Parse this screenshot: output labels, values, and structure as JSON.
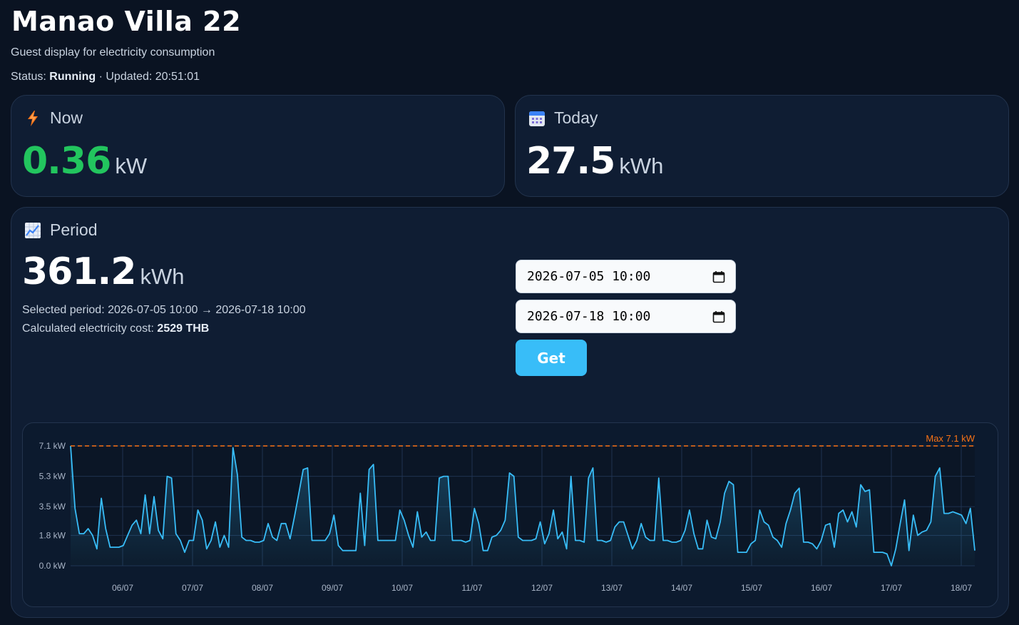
{
  "header": {
    "title": "Manao Villa 22",
    "subtitle": "Guest display for electricity consumption",
    "status_label": "Status:",
    "status_value": "Running",
    "updated": "· Updated: 20:51:01"
  },
  "now": {
    "label": "Now",
    "value": "0.36",
    "unit": "kW",
    "icon": "lightning-icon",
    "color": "#22c55e"
  },
  "today": {
    "label": "Today",
    "value": "27.5",
    "unit": "kWh",
    "icon": "calendar-icon"
  },
  "period": {
    "label": "Period",
    "icon": "chart-icon",
    "value": "361.2",
    "unit": "kWh",
    "selected_label": "Selected period:",
    "selected_range": "2026-07-05 10:00 → 2026-07-18 10:00",
    "cost_label": "Calculated electricity cost:",
    "cost_value": "2529 THB",
    "start_value": "2026-07-05 10:00",
    "end_value": "2026-07-18 10:00",
    "get_label": "Get"
  },
  "chart_data": {
    "type": "area",
    "y_ticks": [
      "7.1 kW",
      "5.3 kW",
      "3.5 kW",
      "1.8 kW",
      "0.0 kW"
    ],
    "y_tick_values": [
      7.1,
      5.3,
      3.5,
      1.8,
      0.0
    ],
    "ylim": [
      0,
      7.1
    ],
    "x_ticks": [
      "06/07",
      "07/07",
      "08/07",
      "09/07",
      "10/07",
      "11/07",
      "12/07",
      "13/07",
      "14/07",
      "15/07",
      "16/07",
      "17/07",
      "18/07"
    ],
    "max_label": "Max 7.1 kW",
    "max_value": 7.1,
    "colors": {
      "line": "#38bdf8",
      "max_line": "#f97316",
      "grid": "#1f3350"
    },
    "values": [
      7.1,
      3.4,
      1.9,
      1.9,
      2.2,
      1.8,
      1.0,
      4.0,
      2.2,
      1.1,
      1.1,
      1.1,
      1.2,
      1.8,
      2.4,
      2.7,
      1.9,
      4.2,
      1.9,
      4.1,
      2.1,
      1.6,
      5.3,
      5.2,
      1.9,
      1.5,
      0.8,
      1.5,
      1.5,
      3.3,
      2.7,
      1.0,
      1.5,
      2.6,
      1.1,
      1.8,
      1.1,
      7.0,
      5.4,
      1.7,
      1.5,
      1.5,
      1.4,
      1.4,
      1.5,
      2.5,
      1.7,
      1.5,
      2.5,
      2.5,
      1.6,
      2.9,
      4.3,
      5.7,
      5.8,
      1.5,
      1.5,
      1.5,
      1.5,
      1.9,
      3.0,
      1.2,
      0.9,
      0.9,
      0.9,
      0.9,
      4.3,
      1.2,
      5.7,
      6.0,
      1.5,
      1.5,
      1.5,
      1.5,
      1.5,
      3.3,
      2.7,
      1.8,
      1.1,
      3.2,
      1.7,
      2.0,
      1.5,
      1.5,
      5.2,
      5.3,
      5.3,
      1.5,
      1.5,
      1.5,
      1.4,
      1.5,
      3.4,
      2.5,
      0.9,
      0.9,
      1.7,
      1.8,
      2.1,
      2.7,
      5.5,
      5.3,
      1.7,
      1.5,
      1.5,
      1.5,
      1.6,
      2.6,
      1.3,
      1.9,
      3.3,
      1.6,
      2.0,
      1.0,
      5.3,
      1.5,
      1.5,
      1.4,
      5.2,
      5.8,
      1.5,
      1.5,
      1.4,
      1.5,
      2.3,
      2.6,
      2.6,
      1.8,
      1.0,
      1.5,
      2.5,
      1.7,
      1.5,
      1.5,
      5.2,
      1.5,
      1.5,
      1.4,
      1.4,
      1.5,
      2.1,
      3.3,
      1.9,
      1.0,
      1.0,
      2.7,
      1.7,
      1.6,
      2.6,
      4.3,
      5.0,
      4.8,
      0.8,
      0.8,
      0.8,
      1.3,
      1.5,
      3.3,
      2.6,
      2.4,
      1.7,
      1.5,
      1.1,
      2.5,
      3.3,
      4.3,
      4.6,
      1.4,
      1.4,
      1.3,
      1.0,
      1.5,
      2.4,
      2.5,
      1.1,
      3.1,
      3.3,
      2.6,
      3.2,
      2.3,
      4.8,
      4.4,
      4.5,
      0.8,
      0.8,
      0.8,
      0.7,
      0.0,
      1.0,
      2.5,
      3.9,
      0.9,
      3.0,
      1.8,
      2.0,
      2.1,
      2.6,
      5.3,
      5.8,
      3.1,
      3.1,
      3.2,
      3.1,
      3.0,
      2.5,
      3.4,
      0.9
    ]
  }
}
